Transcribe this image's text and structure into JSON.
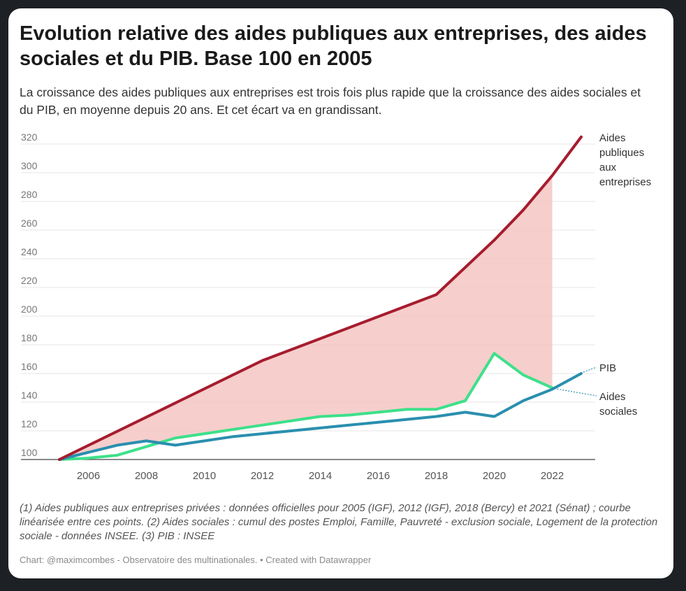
{
  "header": {
    "title": "Evolution relative des aides publiques aux entreprises, des aides sociales et du PIB. Base 100 en 2005",
    "subtitle": "La croissance des aides publiques aux entreprises est trois fois plus rapide que la croissance des aides sociales et du PIB, en moyenne depuis 20 ans. Et cet écart va en grandissant."
  },
  "chart_data": {
    "type": "line",
    "xlim": [
      2005,
      2023
    ],
    "ylim": [
      100,
      320
    ],
    "x_ticks": [
      2006,
      2008,
      2010,
      2012,
      2014,
      2016,
      2018,
      2020,
      2022
    ],
    "y_ticks": [
      100,
      120,
      140,
      160,
      180,
      200,
      220,
      240,
      260,
      280,
      300,
      320
    ],
    "grid": true,
    "legend": "direct labels at right end of lines",
    "gap_fill": {
      "color": "#f4c6c3",
      "x_range": [
        2005,
        2022
      ]
    },
    "series": [
      {
        "name": "Aides publiques aux entreprises",
        "label_lines": [
          "Aides",
          "publiques",
          "aux",
          "entreprises"
        ],
        "color": "#a61c2e",
        "points": [
          [
            2005,
            100
          ],
          [
            2012,
            169
          ],
          [
            2018,
            215
          ],
          [
            2020,
            253
          ],
          [
            2021,
            274
          ],
          [
            2022,
            298
          ],
          [
            2023,
            325
          ]
        ]
      },
      {
        "name": "PIB",
        "label_lines": [
          "PIB"
        ],
        "color": "#2a8fae",
        "points": [
          [
            2005,
            100
          ],
          [
            2006,
            105
          ],
          [
            2007,
            110
          ],
          [
            2008,
            113
          ],
          [
            2009,
            110
          ],
          [
            2010,
            113
          ],
          [
            2011,
            116
          ],
          [
            2012,
            118
          ],
          [
            2013,
            120
          ],
          [
            2014,
            122
          ],
          [
            2015,
            124
          ],
          [
            2016,
            126
          ],
          [
            2017,
            128
          ],
          [
            2018,
            130
          ],
          [
            2019,
            133
          ],
          [
            2020,
            130
          ],
          [
            2021,
            141
          ],
          [
            2022,
            149
          ],
          [
            2023,
            160
          ]
        ]
      },
      {
        "name": "Aides sociales",
        "label_lines": [
          "Aides",
          "sociales"
        ],
        "color": "#3ee08a",
        "points": [
          [
            2005,
            100
          ],
          [
            2006,
            101
          ],
          [
            2007,
            103
          ],
          [
            2008,
            109
          ],
          [
            2009,
            115
          ],
          [
            2010,
            118
          ],
          [
            2011,
            121
          ],
          [
            2012,
            124
          ],
          [
            2013,
            127
          ],
          [
            2014,
            130
          ],
          [
            2015,
            131
          ],
          [
            2016,
            133
          ],
          [
            2017,
            135
          ],
          [
            2018,
            135
          ],
          [
            2019,
            141
          ],
          [
            2020,
            174
          ],
          [
            2021,
            159
          ],
          [
            2022,
            150
          ]
        ]
      }
    ]
  },
  "footer": {
    "notes": "(1) Aides publiques aux entreprises privées : données officielles pour 2005 (IGF), 2012 (IGF), 2018 (Bercy) et 2021 (Sénat) ; courbe linéarisée entre ces points. (2) Aides sociales : cumul des postes Emploi, Famille, Pauvreté - exclusion sociale, Logement de la protection sociale - données INSEE. (3) PIB : INSEE",
    "credits": "Chart: @maximcombes - Observatoire des multinationales. • Created with Datawrapper"
  }
}
